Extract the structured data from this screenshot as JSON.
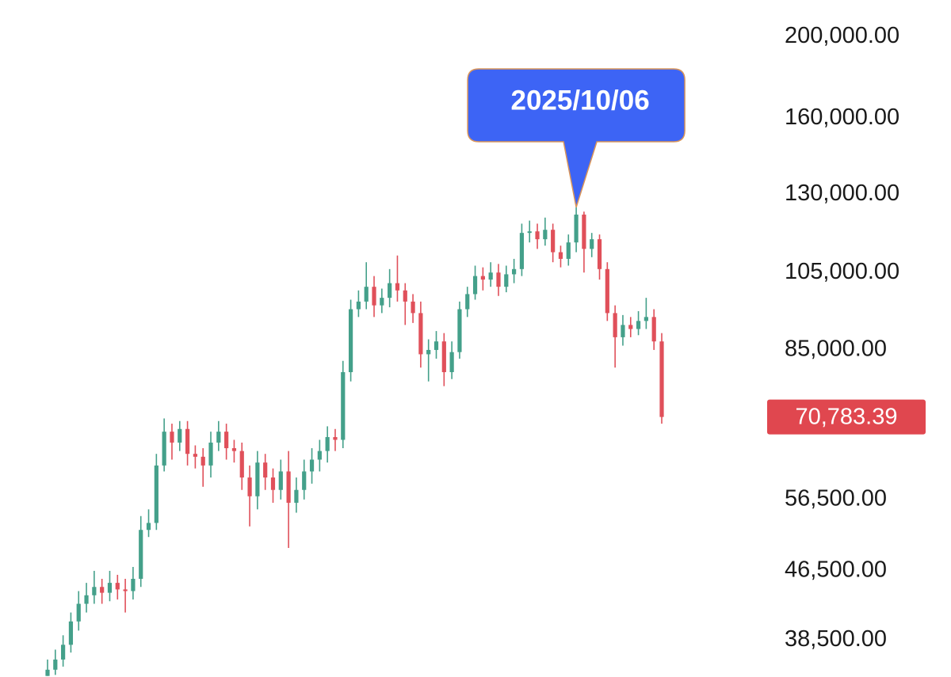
{
  "chart_data": {
    "type": "candlestick",
    "log_scale": true,
    "up_color": "#44a08a",
    "down_color": "#e0505a",
    "open": [
      34900,
      35500,
      36500,
      38000,
      40500,
      42500,
      43500,
      44500,
      43800,
      45000,
      44200,
      44000,
      45500,
      52000,
      53000,
      62000,
      68000,
      66000,
      68500,
      64000,
      63500,
      62000,
      66000,
      68000,
      65000,
      64500,
      60000,
      57000,
      62500,
      60000,
      58000,
      61000,
      56000,
      58000,
      61000,
      63000,
      64500,
      67000,
      66500,
      80000,
      95000,
      97000,
      101000,
      96000,
      98000,
      102000,
      100000,
      97000,
      94000,
      84000,
      85000,
      87000,
      80000,
      84500,
      95000,
      99000,
      104000,
      103000,
      105000,
      101000,
      104500,
      106000,
      117000,
      117500,
      115000,
      118000,
      111000,
      109000,
      114000,
      123000,
      112000,
      115000,
      106000,
      94000,
      88000,
      91000,
      90000,
      92000,
      93000,
      87000
    ],
    "high": [
      36500,
      37500,
      39000,
      41500,
      44000,
      45000,
      46500,
      45500,
      46500,
      46000,
      45500,
      47000,
      54000,
      55000,
      64000,
      70500,
      69500,
      70000,
      70000,
      65500,
      65000,
      68000,
      70000,
      69500,
      66500,
      66000,
      62000,
      64500,
      64000,
      61500,
      63000,
      64500,
      60000,
      63000,
      65000,
      66500,
      69000,
      68500,
      82500,
      97500,
      100000,
      108000,
      104000,
      100500,
      106000,
      110000,
      102000,
      99000,
      97000,
      87500,
      89500,
      89000,
      87000,
      97000,
      101000,
      107000,
      106500,
      108000,
      107500,
      107000,
      109000,
      120000,
      121000,
      120000,
      122000,
      120000,
      113000,
      116500,
      125500,
      124000,
      117000,
      116500,
      108000,
      96000,
      93500,
      93000,
      94500,
      98000,
      95000,
      89000
    ],
    "low": [
      34900,
      35000,
      35800,
      37200,
      39500,
      41500,
      42500,
      42500,
      42800,
      43000,
      41500,
      43000,
      44500,
      51000,
      52000,
      61000,
      63000,
      64500,
      62000,
      61500,
      58500,
      60000,
      64500,
      63000,
      62500,
      58000,
      52500,
      55000,
      58000,
      56000,
      56500,
      49500,
      54500,
      56500,
      59000,
      61000,
      62500,
      64500,
      65000,
      78000,
      93000,
      95000,
      93000,
      94000,
      95500,
      97000,
      91000,
      91500,
      81000,
      78000,
      83000,
      77000,
      78500,
      83000,
      93000,
      97500,
      100000,
      101000,
      98500,
      99500,
      102000,
      104000,
      114000,
      112000,
      113000,
      108000,
      106500,
      107000,
      111000,
      105000,
      109500,
      103000,
      92000,
      81000,
      86000,
      88000,
      88500,
      90000,
      85000,
      69500
    ],
    "close": [
      35500,
      36500,
      38000,
      40500,
      42500,
      43500,
      44500,
      43800,
      45000,
      44200,
      44000,
      45500,
      52000,
      53000,
      62000,
      68000,
      66000,
      68500,
      64000,
      63500,
      62000,
      66000,
      68000,
      65000,
      64500,
      60000,
      57000,
      62500,
      60000,
      58000,
      61000,
      56000,
      58000,
      61000,
      63000,
      64500,
      67000,
      66500,
      80000,
      95000,
      97000,
      101000,
      96000,
      98000,
      102000,
      100000,
      97000,
      94000,
      84000,
      85000,
      87000,
      80000,
      84500,
      95000,
      99000,
      104000,
      103000,
      105000,
      101000,
      104500,
      106000,
      117000,
      117500,
      115000,
      118000,
      111000,
      109000,
      114000,
      123000,
      112000,
      115000,
      106000,
      94000,
      88000,
      91000,
      90000,
      92000,
      93000,
      87000,
      70783.39
    ],
    "ylim": [
      34800,
      221000
    ],
    "yticks": [
      {
        "value": 200000,
        "label": "200,000.00"
      },
      {
        "value": 160000,
        "label": "160,000.00"
      },
      {
        "value": 130000,
        "label": "130,000.00"
      },
      {
        "value": 105000,
        "label": "105,000.00"
      },
      {
        "value": 85000,
        "label": "85,000.00"
      },
      {
        "value": 56500,
        "label": "56,500.00"
      },
      {
        "value": 46500,
        "label": "46,500.00"
      },
      {
        "value": 38500,
        "label": "38,500.00"
      }
    ],
    "last_price": {
      "value": 70783.39,
      "label": "70,783.39",
      "color": "#e0474f"
    },
    "annotation": {
      "text": "2025/10/06",
      "color": "#3d64f5"
    }
  }
}
